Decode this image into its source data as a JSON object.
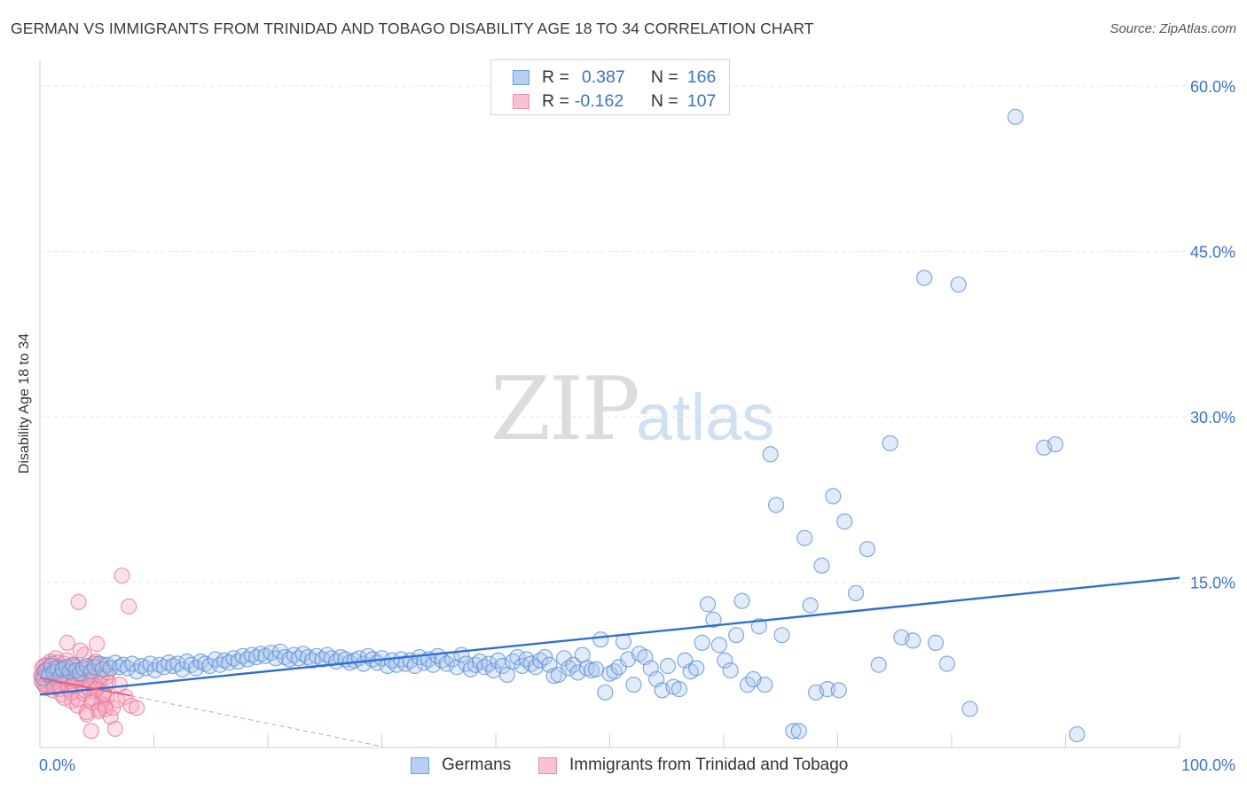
{
  "title": "GERMAN VS IMMIGRANTS FROM TRINIDAD AND TOBAGO DISABILITY AGE 18 TO 34 CORRELATION CHART",
  "source": "Source: ZipAtlas.com",
  "watermark": {
    "zip": "ZIP",
    "atlas": "atlas"
  },
  "legend_top": {
    "rows": [
      {
        "r_label": "R =",
        "r_value": "0.387",
        "n_label": "N =",
        "n_value": "166"
      },
      {
        "r_label": "R =",
        "r_value": "-0.162",
        "n_label": "N =",
        "n_value": "107"
      }
    ]
  },
  "colors": {
    "germans_fill": "#a9c6ee",
    "germans_stroke": "#5b8fd6",
    "germans_line": "#2f6fd0",
    "tt_fill": "#f6a9c0",
    "tt_stroke": "#e8789a",
    "tt_line": "#e0608a",
    "axis_text": "#3a72c8",
    "grid": "#e6e6e6"
  },
  "chart_data": {
    "type": "scatter",
    "title": "GERMAN VS IMMIGRANTS FROM TRINIDAD AND TOBAGO DISABILITY AGE 18 TO 34 CORRELATION CHART",
    "xlabel": "",
    "ylabel": "Disability Age 18 to 34",
    "xlim": [
      0,
      100
    ],
    "ylim": [
      0,
      60
    ],
    "x_tick_labels": [
      "0.0%",
      "100.0%"
    ],
    "y_tick_labels": [
      "15.0%",
      "30.0%",
      "45.0%",
      "60.0%"
    ],
    "y_ticks": [
      15,
      30,
      45,
      60
    ],
    "grid": true,
    "legend_position": "bottom",
    "series": [
      {
        "name": "Germans",
        "r": 0.387,
        "n": 166,
        "trend": [
          [
            0,
            4.8
          ],
          [
            100,
            15.4
          ]
        ],
        "points": [
          [
            0.3,
            6.3
          ],
          [
            0.5,
            7.0
          ],
          [
            0.8,
            6.6
          ],
          [
            1.0,
            7.4
          ],
          [
            1.2,
            6.8
          ],
          [
            1.5,
            7.2
          ],
          [
            1.8,
            6.5
          ],
          [
            2.0,
            7.1
          ],
          [
            2.3,
            7.3
          ],
          [
            2.6,
            6.9
          ],
          [
            2.9,
            7.5
          ],
          [
            3.2,
            7.0
          ],
          [
            3.5,
            6.7
          ],
          [
            3.8,
            7.2
          ],
          [
            4.1,
            7.4
          ],
          [
            4.5,
            6.9
          ],
          [
            4.8,
            7.3
          ],
          [
            5.2,
            7.6
          ],
          [
            5.5,
            7.1
          ],
          [
            5.9,
            7.5
          ],
          [
            6.2,
            7.2
          ],
          [
            6.6,
            7.7
          ],
          [
            7.0,
            7.3
          ],
          [
            7.3,
            7.5
          ],
          [
            7.7,
            7.2
          ],
          [
            8.1,
            7.6
          ],
          [
            8.5,
            6.9
          ],
          [
            8.9,
            7.4
          ],
          [
            9.3,
            7.2
          ],
          [
            9.7,
            7.6
          ],
          [
            10.1,
            7.0
          ],
          [
            10.5,
            7.5
          ],
          [
            10.9,
            7.3
          ],
          [
            11.3,
            7.7
          ],
          [
            11.7,
            7.4
          ],
          [
            12.1,
            7.6
          ],
          [
            12.5,
            7.1
          ],
          [
            12.9,
            7.8
          ],
          [
            13.3,
            7.5
          ],
          [
            13.7,
            7.2
          ],
          [
            14.1,
            7.8
          ],
          [
            14.5,
            7.6
          ],
          [
            14.9,
            7.4
          ],
          [
            15.4,
            8.0
          ],
          [
            15.8,
            7.5
          ],
          [
            16.2,
            7.9
          ],
          [
            16.6,
            7.7
          ],
          [
            17.0,
            8.1
          ],
          [
            17.4,
            7.8
          ],
          [
            17.8,
            8.3
          ],
          [
            18.2,
            8.0
          ],
          [
            18.6,
            8.4
          ],
          [
            19.0,
            8.2
          ],
          [
            19.4,
            8.5
          ],
          [
            19.8,
            8.3
          ],
          [
            20.3,
            8.6
          ],
          [
            20.7,
            8.1
          ],
          [
            21.1,
            8.7
          ],
          [
            21.5,
            8.2
          ],
          [
            21.9,
            8.0
          ],
          [
            22.3,
            8.4
          ],
          [
            22.7,
            8.1
          ],
          [
            23.1,
            8.5
          ],
          [
            23.5,
            8.2
          ],
          [
            23.9,
            7.9
          ],
          [
            24.3,
            8.3
          ],
          [
            24.8,
            8.0
          ],
          [
            25.2,
            8.4
          ],
          [
            25.6,
            8.1
          ],
          [
            26.0,
            7.8
          ],
          [
            26.4,
            8.2
          ],
          [
            26.8,
            8.0
          ],
          [
            27.2,
            7.7
          ],
          [
            27.6,
            7.9
          ],
          [
            28.0,
            8.1
          ],
          [
            28.4,
            7.6
          ],
          [
            28.8,
            8.3
          ],
          [
            29.2,
            8.0
          ],
          [
            29.6,
            7.7
          ],
          [
            30.0,
            8.1
          ],
          [
            30.5,
            7.4
          ],
          [
            30.9,
            7.9
          ],
          [
            31.3,
            7.5
          ],
          [
            31.7,
            8.0
          ],
          [
            32.1,
            7.6
          ],
          [
            32.5,
            7.9
          ],
          [
            32.9,
            7.4
          ],
          [
            33.3,
            8.2
          ],
          [
            33.7,
            7.7
          ],
          [
            34.1,
            8.0
          ],
          [
            34.5,
            7.5
          ],
          [
            34.9,
            8.3
          ],
          [
            35.3,
            7.9
          ],
          [
            35.7,
            7.6
          ],
          [
            36.2,
            8.0
          ],
          [
            36.6,
            7.3
          ],
          [
            37.0,
            8.4
          ],
          [
            37.4,
            7.6
          ],
          [
            37.8,
            7.1
          ],
          [
            38.2,
            7.5
          ],
          [
            38.6,
            7.8
          ],
          [
            39.0,
            7.3
          ],
          [
            39.4,
            7.6
          ],
          [
            39.8,
            7.0
          ],
          [
            40.2,
            7.9
          ],
          [
            40.6,
            7.4
          ],
          [
            41.0,
            6.6
          ],
          [
            41.5,
            7.8
          ],
          [
            41.9,
            8.2
          ],
          [
            42.3,
            7.4
          ],
          [
            42.7,
            8.0
          ],
          [
            43.1,
            7.6
          ],
          [
            43.5,
            7.3
          ],
          [
            43.9,
            7.9
          ],
          [
            44.3,
            8.2
          ],
          [
            44.7,
            7.5
          ],
          [
            45.1,
            6.5
          ],
          [
            45.5,
            6.6
          ],
          [
            46.0,
            8.1
          ],
          [
            46.4,
            7.2
          ],
          [
            46.8,
            7.5
          ],
          [
            47.2,
            6.8
          ],
          [
            47.6,
            8.4
          ],
          [
            48.0,
            7.2
          ],
          [
            48.4,
            7.0
          ],
          [
            48.8,
            7.1
          ],
          [
            49.2,
            9.8
          ],
          [
            49.6,
            5.0
          ],
          [
            50.0,
            6.7
          ],
          [
            50.4,
            6.9
          ],
          [
            50.8,
            7.3
          ],
          [
            51.2,
            9.6
          ],
          [
            51.6,
            8.0
          ],
          [
            52.1,
            5.7
          ],
          [
            52.6,
            8.5
          ],
          [
            53.1,
            8.2
          ],
          [
            53.6,
            7.2
          ],
          [
            54.1,
            6.2
          ],
          [
            54.6,
            5.2
          ],
          [
            55.1,
            7.4
          ],
          [
            55.6,
            5.5
          ],
          [
            56.1,
            5.3
          ],
          [
            56.6,
            7.9
          ],
          [
            57.1,
            6.9
          ],
          [
            57.6,
            7.2
          ],
          [
            58.1,
            9.5
          ],
          [
            58.6,
            13.0
          ],
          [
            59.1,
            11.6
          ],
          [
            59.6,
            9.3
          ],
          [
            60.1,
            7.9
          ],
          [
            60.6,
            7.0
          ],
          [
            61.1,
            10.2
          ],
          [
            61.6,
            13.3
          ],
          [
            62.1,
            5.7
          ],
          [
            62.6,
            6.2
          ],
          [
            63.1,
            11.0
          ],
          [
            63.6,
            5.7
          ],
          [
            64.1,
            26.6
          ],
          [
            64.6,
            22.0
          ],
          [
            65.1,
            10.2
          ],
          [
            66.1,
            1.5
          ],
          [
            66.6,
            1.5
          ],
          [
            67.1,
            19.0
          ],
          [
            67.6,
            12.9
          ],
          [
            68.1,
            5.0
          ],
          [
            68.6,
            16.5
          ],
          [
            69.1,
            5.3
          ],
          [
            69.6,
            22.8
          ],
          [
            70.1,
            5.2
          ],
          [
            70.6,
            20.5
          ],
          [
            71.6,
            14.0
          ],
          [
            72.6,
            18.0
          ],
          [
            73.6,
            7.5
          ],
          [
            74.6,
            27.6
          ],
          [
            75.6,
            10.0
          ],
          [
            76.6,
            9.7
          ],
          [
            77.6,
            42.6
          ],
          [
            78.6,
            9.5
          ],
          [
            79.6,
            7.6
          ],
          [
            80.6,
            42.0
          ],
          [
            81.6,
            3.5
          ],
          [
            85.6,
            57.2
          ],
          [
            88.1,
            27.2
          ],
          [
            89.1,
            27.5
          ],
          [
            91.0,
            1.2
          ]
        ]
      },
      {
        "name": "Immigrants from Trinidad and Tobago",
        "r": -0.162,
        "n": 107,
        "trend": [
          [
            0,
            6.3
          ],
          [
            8,
            4.7
          ]
        ],
        "trend_extension": [
          [
            8,
            4.7
          ],
          [
            30,
            0.1
          ]
        ],
        "points": [
          [
            0.1,
            6.5
          ],
          [
            0.2,
            7.2
          ],
          [
            0.3,
            5.8
          ],
          [
            0.4,
            6.9
          ],
          [
            0.5,
            6.1
          ],
          [
            0.6,
            7.5
          ],
          [
            0.7,
            5.5
          ],
          [
            0.8,
            6.7
          ],
          [
            0.9,
            7.8
          ],
          [
            1.0,
            6.3
          ],
          [
            1.1,
            5.2
          ],
          [
            1.2,
            7.0
          ],
          [
            1.3,
            6.0
          ],
          [
            1.4,
            8.1
          ],
          [
            1.5,
            6.6
          ],
          [
            1.6,
            5.7
          ],
          [
            1.7,
            7.3
          ],
          [
            1.8,
            6.2
          ],
          [
            1.9,
            4.8
          ],
          [
            2.0,
            6.9
          ],
          [
            2.1,
            7.6
          ],
          [
            2.2,
            5.9
          ],
          [
            2.3,
            6.4
          ],
          [
            2.4,
            9.5
          ],
          [
            2.5,
            5.3
          ],
          [
            2.6,
            7.1
          ],
          [
            2.7,
            6.0
          ],
          [
            2.8,
            4.2
          ],
          [
            2.9,
            6.8
          ],
          [
            3.0,
            7.4
          ],
          [
            3.1,
            5.6
          ],
          [
            3.2,
            6.5
          ],
          [
            3.3,
            3.8
          ],
          [
            3.4,
            13.2
          ],
          [
            3.5,
            7.0
          ],
          [
            3.6,
            5.8
          ],
          [
            3.7,
            6.3
          ],
          [
            3.8,
            4.9
          ],
          [
            3.9,
            8.4
          ],
          [
            4.0,
            6.1
          ],
          [
            4.1,
            3.2
          ],
          [
            4.2,
            7.2
          ],
          [
            4.3,
            5.4
          ],
          [
            4.4,
            6.6
          ],
          [
            4.5,
            1.5
          ],
          [
            4.6,
            4.5
          ],
          [
            4.7,
            6.9
          ],
          [
            4.8,
            5.1
          ],
          [
            4.9,
            7.8
          ],
          [
            5.0,
            9.4
          ],
          [
            5.1,
            5.5
          ],
          [
            5.2,
            3.5
          ],
          [
            5.3,
            6.2
          ],
          [
            5.4,
            4.0
          ],
          [
            5.5,
            7.5
          ],
          [
            5.6,
            5.0
          ],
          [
            5.7,
            3.8
          ],
          [
            5.8,
            6.4
          ],
          [
            5.9,
            4.6
          ],
          [
            6.0,
            5.9
          ],
          [
            6.2,
            2.8
          ],
          [
            6.4,
            3.6
          ],
          [
            6.6,
            1.7
          ],
          [
            6.8,
            4.3
          ],
          [
            7.0,
            5.7
          ],
          [
            7.2,
            15.6
          ],
          [
            7.5,
            4.6
          ],
          [
            7.8,
            12.8
          ],
          [
            8.0,
            3.8
          ],
          [
            8.5,
            3.6
          ],
          [
            0.15,
            6.0
          ],
          [
            0.35,
            7.4
          ],
          [
            0.55,
            5.4
          ],
          [
            0.75,
            6.8
          ],
          [
            0.95,
            7.1
          ],
          [
            1.15,
            5.9
          ],
          [
            1.35,
            6.4
          ],
          [
            1.55,
            7.7
          ],
          [
            1.75,
            5.3
          ],
          [
            1.95,
            6.6
          ],
          [
            2.15,
            4.5
          ],
          [
            2.35,
            7.9
          ],
          [
            2.55,
            6.2
          ],
          [
            2.75,
            5.0
          ],
          [
            2.95,
            7.3
          ],
          [
            3.15,
            6.1
          ],
          [
            3.35,
            4.4
          ],
          [
            3.55,
            8.8
          ],
          [
            3.75,
            6.7
          ],
          [
            3.95,
            5.2
          ],
          [
            4.15,
            3.0
          ],
          [
            4.35,
            6.0
          ],
          [
            4.55,
            4.1
          ],
          [
            4.75,
            7.6
          ],
          [
            4.95,
            5.3
          ],
          [
            5.15,
            3.3
          ],
          [
            5.35,
            6.5
          ],
          [
            5.55,
            4.8
          ],
          [
            5.75,
            3.5
          ],
          [
            5.95,
            6.8
          ],
          [
            0.25,
            6.7
          ],
          [
            0.45,
            5.7
          ],
          [
            0.65,
            7.0
          ],
          [
            0.85,
            6.4
          ],
          [
            1.05,
            7.6
          ],
          [
            1.25,
            5.5
          ],
          [
            1.45,
            6.9
          ]
        ]
      }
    ]
  },
  "legend_bottom": [
    {
      "label": "Germans"
    },
    {
      "label": "Immigrants from Trinidad and Tobago"
    }
  ]
}
